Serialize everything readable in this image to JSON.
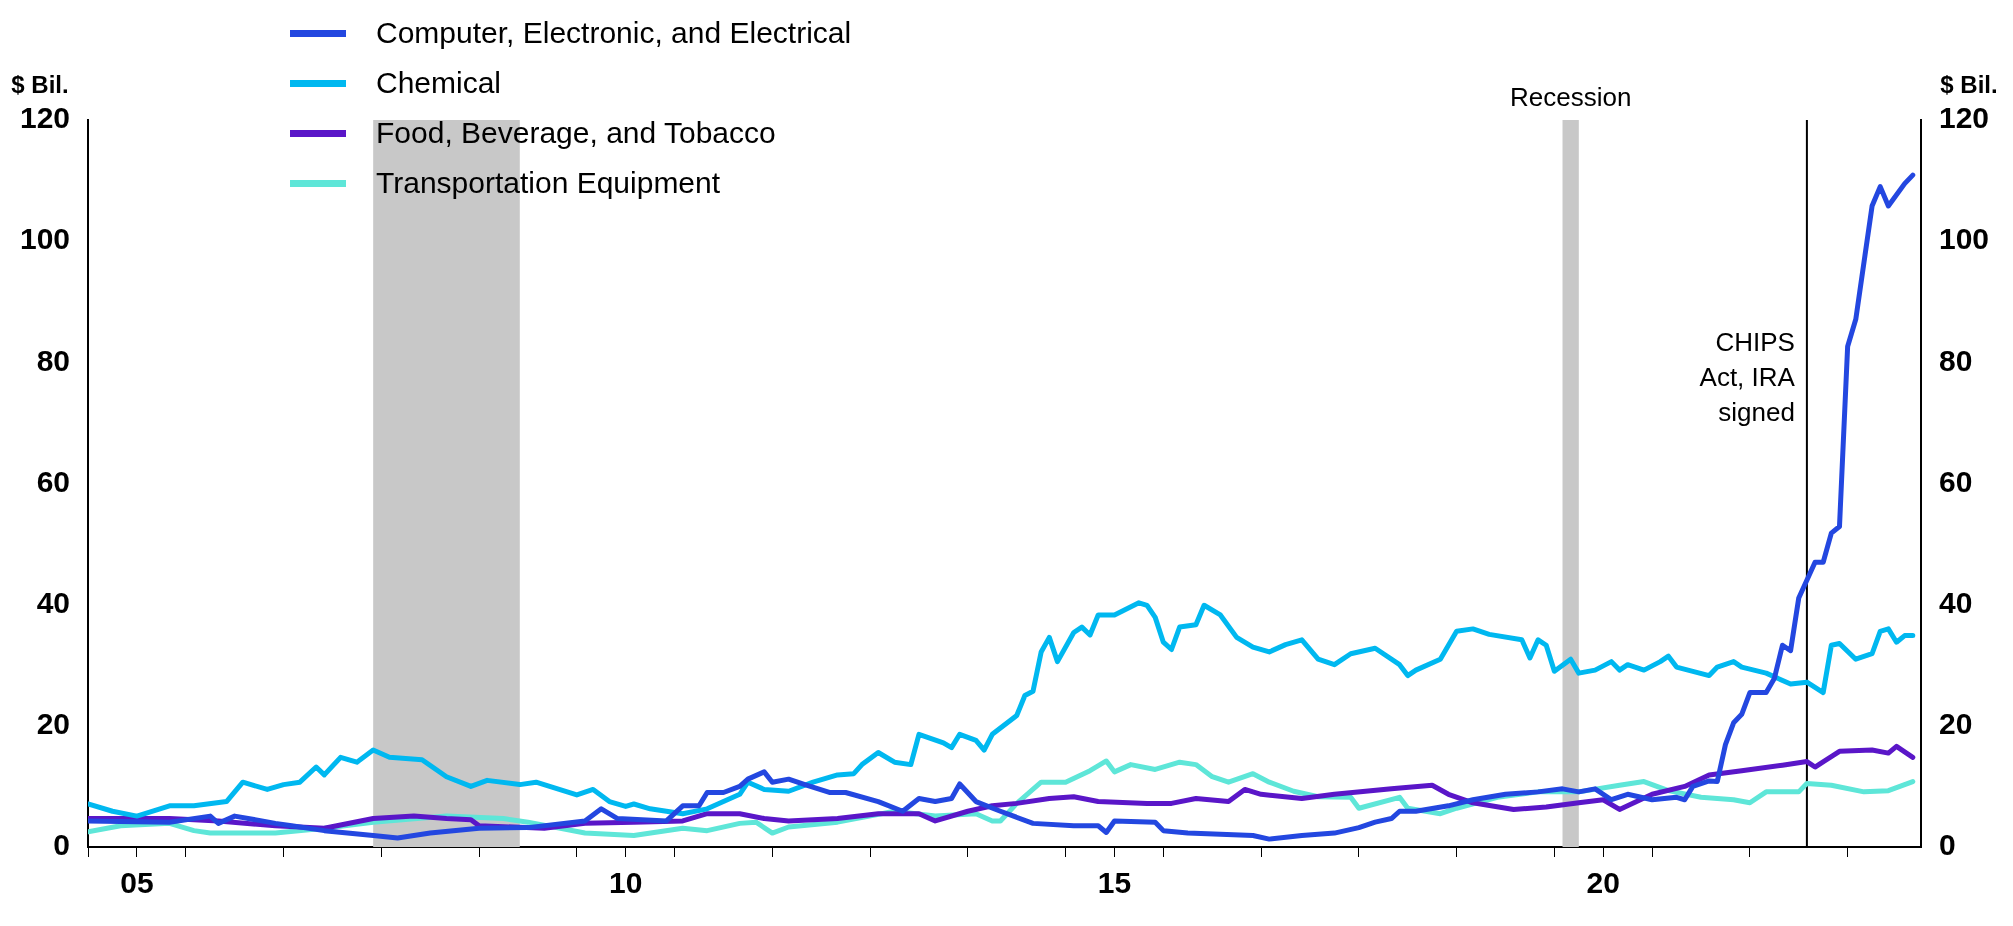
{
  "chart_data": {
    "type": "line",
    "ylabel": "$ Bil.",
    "y2label": "$ Bil.",
    "xlim": [
      "2005-01",
      "2023-10"
    ],
    "xticks": [
      {
        "value": "2005-01",
        "label": null
      },
      {
        "value": "2005-07",
        "label": "05"
      },
      {
        "value": "2006-01",
        "label": null
      },
      {
        "value": "2007-01",
        "label": null
      },
      {
        "value": "2008-01",
        "label": null
      },
      {
        "value": "2009-01",
        "label": null
      },
      {
        "value": "2010-01",
        "label": null
      },
      {
        "value": "2010-07",
        "label": "10"
      },
      {
        "value": "2011-01",
        "label": null
      },
      {
        "value": "2012-01",
        "label": null
      },
      {
        "value": "2013-01",
        "label": null
      },
      {
        "value": "2014-01",
        "label": null
      },
      {
        "value": "2015-01",
        "label": null
      },
      {
        "value": "2015-07",
        "label": "15"
      },
      {
        "value": "2016-01",
        "label": null
      },
      {
        "value": "2017-01",
        "label": null
      },
      {
        "value": "2018-01",
        "label": null
      },
      {
        "value": "2019-01",
        "label": null
      },
      {
        "value": "2020-01",
        "label": null
      },
      {
        "value": "2020-07",
        "label": "20"
      },
      {
        "value": "2021-01",
        "label": null
      },
      {
        "value": "2022-01",
        "label": null
      },
      {
        "value": "2023-01",
        "label": null
      }
    ],
    "ylim": [
      0,
      120
    ],
    "yticks": [
      0,
      20,
      40,
      60,
      80,
      100,
      120
    ],
    "y2lim": [
      0,
      120
    ],
    "y2ticks": [
      0,
      20,
      40,
      60,
      80,
      100,
      120
    ],
    "legend": "top left",
    "bands": [
      {
        "axis": "x",
        "from": "2007-12",
        "to": "2009-06",
        "label": null,
        "color": "#c8c8c8"
      },
      {
        "axis": "x",
        "from": "2020-02",
        "to": "2020-04",
        "label": "Recession",
        "color": "#c8c8c8"
      }
    ],
    "ref_lines": [
      {
        "axis": "x",
        "value": "2022-08",
        "label": "CHIPS Act, IRA signed",
        "color": "#000000"
      }
    ],
    "series": [
      {
        "name": "Computer, Electronic, and Electrical",
        "color": "#2347e0",
        "x": [
          "2005-01",
          "2005-11",
          "2006-04",
          "2006-05",
          "2006-07",
          "2006-12",
          "2007-02",
          "2007-06",
          "2007-12",
          "2008-03",
          "2008-07",
          "2009-01",
          "2009-07",
          "2010-02",
          "2010-04",
          "2010-06",
          "2010-12",
          "2011-02",
          "2011-04",
          "2011-05",
          "2011-07",
          "2011-09",
          "2011-10",
          "2011-12",
          "2012-01",
          "2012-03",
          "2012-05",
          "2012-08",
          "2012-10",
          "2013-02",
          "2013-05",
          "2013-07",
          "2013-09",
          "2013-11",
          "2013-12",
          "2014-02",
          "2014-05",
          "2014-09",
          "2015-02",
          "2015-05",
          "2015-06",
          "2015-07",
          "2015-12",
          "2016-01",
          "2016-04",
          "2016-12",
          "2017-02",
          "2017-06",
          "2017-10",
          "2018-01",
          "2018-03",
          "2018-05",
          "2018-06",
          "2018-08",
          "2018-12",
          "2019-03",
          "2019-07",
          "2019-11",
          "2020-02",
          "2020-04",
          "2020-06",
          "2020-08",
          "2020-10",
          "2021-01",
          "2021-04",
          "2021-05",
          "2021-06",
          "2021-08",
          "2021-09",
          "2021-10",
          "2021-11",
          "2021-12",
          "2022-01",
          "2022-03",
          "2022-04",
          "2022-05",
          "2022-06",
          "2022-07",
          "2022-09",
          "2022-10",
          "2022-11",
          "2022-12",
          "2023-01",
          "2023-02",
          "2023-04",
          "2023-05",
          "2023-06",
          "2023-08",
          "2023-09"
        ],
        "values": [
          4.3,
          4.1,
          5.1,
          3.9,
          5.1,
          3.9,
          3.5,
          2.7,
          1.9,
          1.5,
          2.3,
          3.1,
          3.2,
          4.3,
          6.3,
          4.7,
          4.3,
          6.8,
          6.8,
          9,
          9,
          10,
          11.2,
          12.4,
          10.7,
          11.2,
          10.3,
          9,
          9,
          7.5,
          5.9,
          8,
          7.5,
          8,
          10.4,
          7.5,
          5.9,
          3.9,
          3.5,
          3.5,
          2.4,
          4.3,
          4.1,
          2.7,
          2.3,
          1.9,
          1.3,
          1.9,
          2.3,
          3.2,
          4.1,
          4.7,
          5.9,
          5.9,
          6.8,
          7.8,
          8.7,
          9.1,
          9.6,
          9.1,
          9.6,
          7.8,
          8.7,
          7.8,
          8.2,
          7.8,
          10,
          10.9,
          10.8,
          16.9,
          20.5,
          21.9,
          25.5,
          25.5,
          27.8,
          33.3,
          32.4,
          41.1,
          47,
          47,
          51.8,
          52.9,
          82.6,
          87.1,
          105.8,
          109,
          105.8,
          109.5,
          110.9
        ]
      },
      {
        "name": "Chemical",
        "color": "#00b8f0",
        "x": [
          "2005-01",
          "2005-04",
          "2005-07",
          "2005-11",
          "2006-02",
          "2006-06",
          "2006-08",
          "2006-11",
          "2007-01",
          "2007-03",
          "2007-05",
          "2007-06",
          "2007-08",
          "2007-10",
          "2007-12",
          "2008-02",
          "2008-06",
          "2008-09",
          "2008-12",
          "2009-02",
          "2009-06",
          "2009-08",
          "2010-01",
          "2010-03",
          "2010-05",
          "2010-07",
          "2010-08",
          "2010-10",
          "2011-02",
          "2011-05",
          "2011-09",
          "2011-10",
          "2011-12",
          "2012-03",
          "2012-06",
          "2012-09",
          "2012-11",
          "2012-12",
          "2013-02",
          "2013-04",
          "2013-06",
          "2013-07",
          "2013-10",
          "2013-11",
          "2013-12",
          "2014-02",
          "2014-03",
          "2014-04",
          "2014-07",
          "2014-08",
          "2014-09",
          "2014-10",
          "2014-11",
          "2014-12",
          "2015-02",
          "2015-03",
          "2015-04",
          "2015-05",
          "2015-07",
          "2015-10",
          "2015-11",
          "2015-12",
          "2016-01",
          "2016-02",
          "2016-03",
          "2016-05",
          "2016-06",
          "2016-08",
          "2016-10",
          "2016-12",
          "2017-02",
          "2017-04",
          "2017-06",
          "2017-08",
          "2017-10",
          "2017-12",
          "2018-03",
          "2018-06",
          "2018-07",
          "2018-08",
          "2018-11",
          "2018-12",
          "2019-01",
          "2019-03",
          "2019-05",
          "2019-09",
          "2019-10",
          "2019-11",
          "2019-12",
          "2020-01",
          "2020-03",
          "2020-04",
          "2020-06",
          "2020-08",
          "2020-09",
          "2020-10",
          "2020-12",
          "2021-02",
          "2021-03",
          "2021-04",
          "2021-08",
          "2021-09",
          "2021-11",
          "2021-12",
          "2022-03",
          "2022-06",
          "2022-08",
          "2022-10",
          "2022-11",
          "2022-12",
          "2023-02",
          "2023-04",
          "2023-05",
          "2023-06",
          "2023-07",
          "2023-08",
          "2023-09"
        ],
        "values": [
          7.1,
          5.9,
          5.1,
          6.8,
          6.8,
          7.5,
          10.7,
          9.5,
          10.3,
          10.7,
          13.2,
          11.9,
          14.8,
          14,
          16,
          14.8,
          14.4,
          11.6,
          10,
          11,
          10.3,
          10.7,
          8.6,
          9.5,
          7.5,
          6.7,
          7.1,
          6.3,
          5.5,
          6.3,
          8.7,
          10.7,
          9.5,
          9.2,
          10.7,
          11.9,
          12.1,
          13.6,
          15.6,
          14,
          13.6,
          18.6,
          17.2,
          16.4,
          18.6,
          17.6,
          16,
          18.6,
          21.7,
          25,
          25.7,
          32.2,
          34.6,
          30.6,
          35.4,
          36.3,
          35,
          38.3,
          38.3,
          40.3,
          39.9,
          37.9,
          33.8,
          32.6,
          36.3,
          36.7,
          39.9,
          38.3,
          34.6,
          33,
          32.2,
          33.4,
          34.2,
          31,
          30.1,
          31.9,
          32.8,
          30.1,
          28.3,
          29.2,
          31,
          33.3,
          35.6,
          36,
          35.1,
          34.2,
          31.2,
          34.2,
          33.3,
          29,
          31,
          28.7,
          29.2,
          30.6,
          29.2,
          30.1,
          29.2,
          30.6,
          31.5,
          29.7,
          28.3,
          29.7,
          30.6,
          29.7,
          28.7,
          26.9,
          27.2,
          25.5,
          33.3,
          33.6,
          31,
          31.9,
          35.6,
          36,
          33.8,
          34.9,
          34.9
        ]
      },
      {
        "name": "Food, Beverage, and Tobacco",
        "color": "#5a16c8",
        "x": [
          "2005-01",
          "2005-11",
          "2006-05",
          "2006-12",
          "2007-06",
          "2007-12",
          "2008-05",
          "2008-09",
          "2008-12",
          "2009-01",
          "2009-09",
          "2010-02",
          "2010-08",
          "2011-02",
          "2011-05",
          "2011-09",
          "2011-12",
          "2012-03",
          "2012-09",
          "2013-02",
          "2013-07",
          "2013-09",
          "2014-01",
          "2014-04",
          "2014-07",
          "2014-11",
          "2015-02",
          "2015-05",
          "2015-11",
          "2016-02",
          "2016-05",
          "2016-09",
          "2016-11",
          "2017-01",
          "2017-06",
          "2017-10",
          "2018-05",
          "2018-10",
          "2018-12",
          "2019-03",
          "2019-08",
          "2019-12",
          "2020-04",
          "2020-07",
          "2020-09",
          "2021-01",
          "2021-05",
          "2021-08",
          "2021-12",
          "2022-05",
          "2022-08",
          "2022-09",
          "2022-12",
          "2023-04",
          "2023-06",
          "2023-07",
          "2023-09"
        ],
        "values": [
          4.7,
          4.7,
          4.3,
          3.5,
          3.1,
          4.7,
          5.1,
          4.7,
          4.5,
          3.5,
          3.1,
          3.9,
          4.1,
          4.3,
          5.5,
          5.5,
          4.7,
          4.3,
          4.7,
          5.5,
          5.5,
          4.3,
          5.9,
          6.8,
          7.2,
          8,
          8.3,
          7.5,
          7.2,
          7.2,
          8,
          7.5,
          9.5,
          8.7,
          8,
          8.7,
          9.6,
          10.2,
          8.7,
          7.3,
          6.2,
          6.6,
          7.3,
          7.8,
          6.2,
          8.7,
          10,
          11.9,
          12.6,
          13.5,
          14.1,
          13.2,
          15.8,
          16,
          15.5,
          16.6,
          14.8
        ]
      },
      {
        "name": "Transportation Equipment",
        "color": "#5ee6d8",
        "x": [
          "2005-01",
          "2005-05",
          "2005-11",
          "2006-02",
          "2006-04",
          "2006-12",
          "2007-06",
          "2007-12",
          "2008-09",
          "2009-04",
          "2009-07",
          "2010-02",
          "2010-08",
          "2011-02",
          "2011-05",
          "2011-09",
          "2011-11",
          "2012-01",
          "2012-03",
          "2012-09",
          "2013-04",
          "2013-09",
          "2014-02",
          "2014-04",
          "2014-05",
          "2014-07",
          "2014-10",
          "2015-01",
          "2015-04",
          "2015-06",
          "2015-07",
          "2015-09",
          "2015-12",
          "2016-03",
          "2016-05",
          "2016-07",
          "2016-09",
          "2016-12",
          "2017-02",
          "2017-05",
          "2017-08",
          "2017-12",
          "2018-01",
          "2018-06",
          "2018-07",
          "2018-11",
          "2019-01",
          "2019-06",
          "2019-11",
          "2020-04",
          "2020-09",
          "2020-12",
          "2021-03",
          "2021-07",
          "2021-11",
          "2022-01",
          "2022-03",
          "2022-07",
          "2022-08",
          "2022-11",
          "2023-03",
          "2023-06",
          "2023-09"
        ],
        "values": [
          2.5,
          3.5,
          3.9,
          2.7,
          2.3,
          2.3,
          3.1,
          4.1,
          5.1,
          4.7,
          4.1,
          2.3,
          1.9,
          3.1,
          2.7,
          3.9,
          4.1,
          2.3,
          3.3,
          4.1,
          5.9,
          5.1,
          5.5,
          4.3,
          4.3,
          7.2,
          10.7,
          10.7,
          12.6,
          14.2,
          12.4,
          13.6,
          12.8,
          14,
          13.6,
          11.6,
          10.7,
          12.1,
          10.7,
          9.2,
          8.3,
          8.2,
          6.4,
          8.2,
          6.4,
          5.5,
          6.4,
          8.2,
          9.1,
          9.1,
          10.2,
          10.8,
          9.3,
          8.2,
          7.8,
          7.3,
          9.1,
          9.1,
          10.5,
          10.2,
          9.1,
          9.3,
          10.8
        ]
      }
    ]
  }
}
